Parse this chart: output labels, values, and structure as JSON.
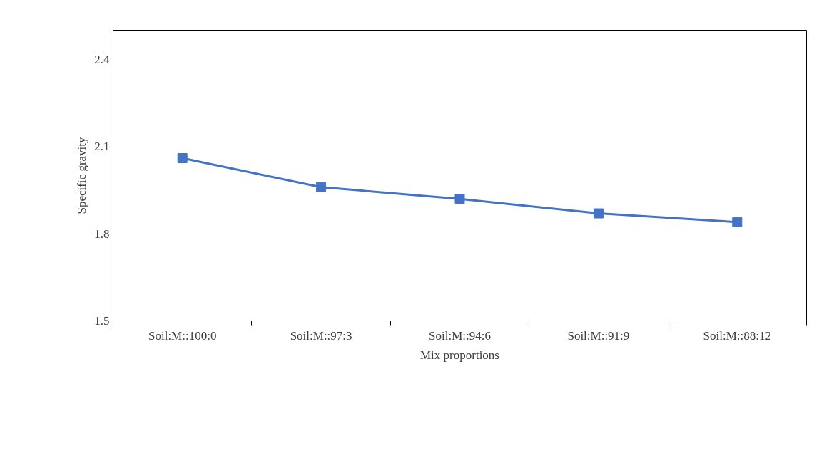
{
  "chart_data": {
    "type": "line",
    "xlabel": "Mix proportions",
    "ylabel": "Specific gravity",
    "categories": [
      "Soil:M::100:0",
      "Soil:M::97:3",
      "Soil:M::94:6",
      "Soil:M::91:9",
      "Soil:M::88:12"
    ],
    "series": [
      {
        "color": "#4472c4",
        "values": [
          2.06,
          1.96,
          1.92,
          1.87,
          1.84
        ]
      }
    ],
    "ylim": [
      1.5,
      2.5
    ],
    "yticks": [
      1.5,
      1.8,
      2.1,
      2.4
    ],
    "grid": false,
    "marker": "square",
    "line_style": "solid"
  }
}
